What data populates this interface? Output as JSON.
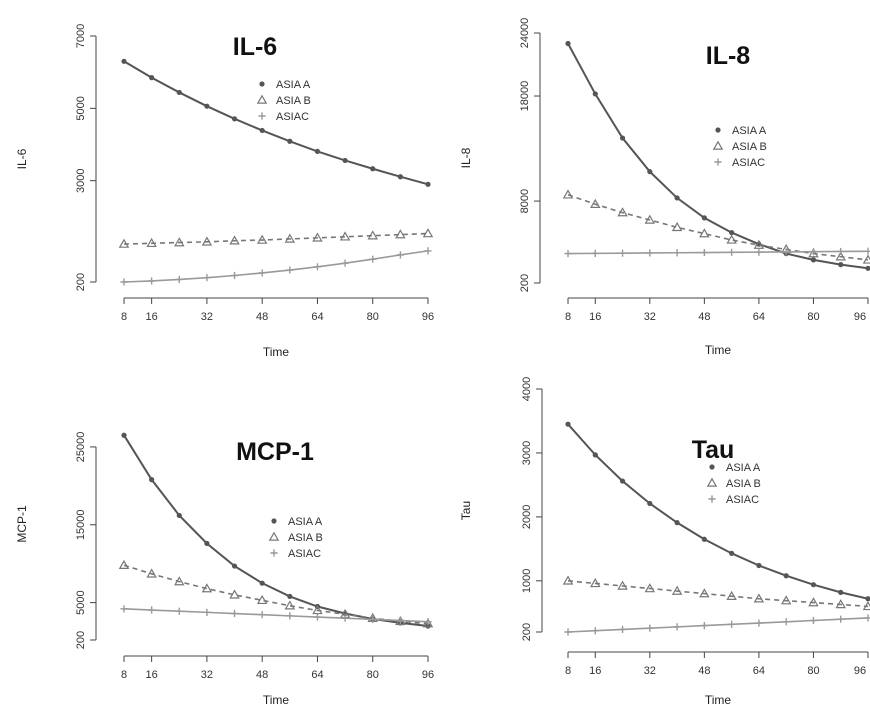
{
  "chart_data": [
    {
      "type": "line",
      "title": "IL-6",
      "xlabel": "Time",
      "ylabel": "IL-6",
      "x": [
        8,
        16,
        24,
        32,
        40,
        48,
        56,
        64,
        72,
        80,
        88,
        96
      ],
      "xticks": [
        8,
        16,
        32,
        48,
        64,
        80,
        96
      ],
      "xtick_labels": [
        "8",
        "16",
        "32",
        "48",
        "64",
        "80",
        "96"
      ],
      "xlim": [
        8,
        96
      ],
      "yticks": [
        200,
        3000,
        5000,
        7000
      ],
      "ytick_labels": [
        "200",
        "3000",
        "5000",
        "7000"
      ],
      "ylim": [
        200,
        7000
      ],
      "legend": {
        "position": "top-right",
        "entries": [
          "ASIA A",
          "ASIA B",
          "ASIAC"
        ]
      },
      "series": [
        {
          "name": "ASIA A",
          "marker": "circle",
          "style": "solid",
          "values": [
            6300,
            5850,
            5440,
            5060,
            4710,
            4390,
            4090,
            3810,
            3560,
            3330,
            3110,
            2900
          ]
        },
        {
          "name": "ASIA B",
          "marker": "triangle",
          "style": "dashed",
          "values": [
            1250,
            1270,
            1290,
            1310,
            1340,
            1360,
            1390,
            1420,
            1450,
            1480,
            1510,
            1540
          ]
        },
        {
          "name": "ASIAC",
          "marker": "plus",
          "style": "solid",
          "values": [
            200,
            230,
            270,
            320,
            380,
            450,
            530,
            620,
            720,
            830,
            950,
            1060
          ]
        }
      ]
    },
    {
      "type": "line",
      "title": "IL-8",
      "xlabel": "Time",
      "ylabel": "IL-8",
      "x": [
        8,
        16,
        24,
        32,
        40,
        48,
        56,
        64,
        72,
        80,
        88,
        96
      ],
      "xticks": [
        8,
        16,
        32,
        48,
        64,
        80,
        96
      ],
      "xtick_labels": [
        "8",
        "16",
        "32",
        "48",
        "64",
        "80",
        "96"
      ],
      "xlim": [
        8,
        96
      ],
      "yticks": [
        200,
        8000,
        18000,
        24000
      ],
      "ytick_labels": [
        "200",
        "8000",
        "18000",
        "24000"
      ],
      "ylim": [
        200,
        24000
      ],
      "legend": {
        "position": "right",
        "entries": [
          "ASIA A",
          "ASIA B",
          "ASIAC"
        ]
      },
      "series": [
        {
          "name": "ASIA A",
          "marker": "circle",
          "style": "solid",
          "values": [
            23000,
            18200,
            14000,
            10800,
            8300,
            6400,
            5000,
            3900,
            3000,
            2400,
            1950,
            1600
          ]
        },
        {
          "name": "ASIA B",
          "marker": "triangle",
          "style": "dashed",
          "values": [
            8600,
            7700,
            6900,
            6200,
            5500,
            4900,
            4300,
            3800,
            3400,
            3000,
            2700,
            2400
          ]
        },
        {
          "name": "ASIAC",
          "marker": "plus",
          "style": "solid",
          "values": [
            3000,
            3020,
            3040,
            3060,
            3080,
            3100,
            3120,
            3140,
            3160,
            3180,
            3200,
            3220
          ]
        }
      ]
    },
    {
      "type": "line",
      "title": "MCP-1",
      "xlabel": "Time",
      "ylabel": "MCP-1",
      "x": [
        8,
        16,
        24,
        32,
        40,
        48,
        56,
        64,
        72,
        80,
        88,
        96
      ],
      "xticks": [
        8,
        16,
        32,
        48,
        64,
        80,
        96
      ],
      "xtick_labels": [
        "8",
        "16",
        "32",
        "48",
        "64",
        "80",
        "96"
      ],
      "xlim": [
        8,
        96
      ],
      "yticks": [
        200,
        5000,
        15000,
        25000
      ],
      "ytick_labels": [
        "200",
        "5000",
        "15000",
        "25000"
      ],
      "ylim": [
        200,
        30000
      ],
      "legend": {
        "position": "right",
        "entries": [
          "ASIA A",
          "ASIA B",
          "ASIAC"
        ]
      },
      "series": [
        {
          "name": "ASIA A",
          "marker": "circle",
          "style": "solid",
          "values": [
            26500,
            20800,
            16200,
            12600,
            9700,
            7500,
            5800,
            4500,
            3600,
            2900,
            2400,
            2000
          ]
        },
        {
          "name": "ASIA B",
          "marker": "triangle",
          "style": "dashed",
          "values": [
            9800,
            8700,
            7700,
            6800,
            6000,
            5300,
            4600,
            4000,
            3500,
            3000,
            2600,
            2300
          ]
        },
        {
          "name": "ASIAC",
          "marker": "plus",
          "style": "solid",
          "values": [
            4200,
            4050,
            3900,
            3750,
            3600,
            3450,
            3300,
            3150,
            3000,
            2850,
            2700,
            2550
          ]
        }
      ]
    },
    {
      "type": "line",
      "title": "Tau",
      "xlabel": "Time",
      "ylabel": "Tau",
      "x": [
        8,
        16,
        24,
        32,
        40,
        48,
        56,
        64,
        72,
        80,
        88,
        96
      ],
      "xticks": [
        8,
        16,
        32,
        48,
        64,
        80,
        96
      ],
      "xtick_labels": [
        "8",
        "16",
        "32",
        "48",
        "64",
        "80",
        "96"
      ],
      "xlim": [
        8,
        96
      ],
      "yticks": [
        200,
        1000,
        2000,
        3000,
        4000
      ],
      "ytick_labels": [
        "200",
        "1000",
        "2000",
        "3000",
        "4000"
      ],
      "ylim": [
        200,
        4000
      ],
      "legend": {
        "position": "right",
        "entries": [
          "ASIA A",
          "ASIA B",
          "ASIAC"
        ]
      },
      "series": [
        {
          "name": "ASIA A",
          "marker": "circle",
          "style": "solid",
          "values": [
            3450,
            2970,
            2560,
            2210,
            1910,
            1650,
            1430,
            1240,
            1080,
            940,
            820,
            720
          ]
        },
        {
          "name": "ASIA B",
          "marker": "triangle",
          "style": "dashed",
          "values": [
            1000,
            960,
            920,
            880,
            840,
            800,
            760,
            720,
            690,
            660,
            630,
            600
          ]
        },
        {
          "name": "ASIAC",
          "marker": "plus",
          "style": "solid",
          "values": [
            200,
            220,
            240,
            260,
            280,
            300,
            320,
            340,
            360,
            380,
            400,
            420
          ]
        }
      ]
    }
  ]
}
